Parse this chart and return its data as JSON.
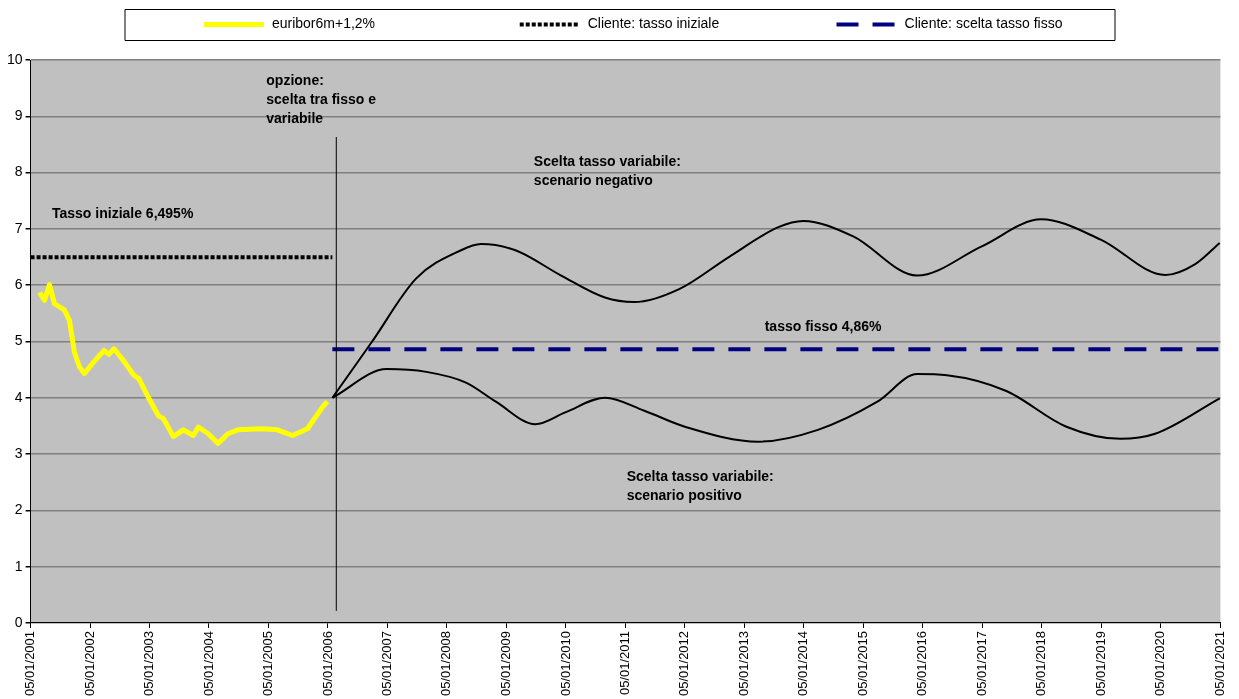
{
  "chart_data": {
    "type": "line",
    "marker": "none",
    "grid": "y",
    "legend": "top",
    "xlim": [
      "2001-01-05",
      "2021-01-05"
    ],
    "xticks": [
      {
        "value": "2001-01-05",
        "label": "05/01/2001"
      },
      {
        "value": "2002-01-05",
        "label": "05/01/2002"
      },
      {
        "value": "2003-01-05",
        "label": "05/01/2003"
      },
      {
        "value": "2004-01-05",
        "label": "05/01/2004"
      },
      {
        "value": "2005-01-05",
        "label": "05/01/2005"
      },
      {
        "value": "2006-01-05",
        "label": "05/01/2006"
      },
      {
        "value": "2007-01-05",
        "label": "05/01/2007"
      },
      {
        "value": "2008-01-05",
        "label": "05/01/2008"
      },
      {
        "value": "2009-01-05",
        "label": "05/01/2009"
      },
      {
        "value": "2010-01-05",
        "label": "05/01/2010"
      },
      {
        "value": "2011-01-05",
        "label": "05/01/2011"
      },
      {
        "value": "2012-01-05",
        "label": "05/01/2012"
      },
      {
        "value": "2013-01-05",
        "label": "05/01/2013"
      },
      {
        "value": "2014-01-05",
        "label": "05/01/2014"
      },
      {
        "value": "2015-01-05",
        "label": "05/01/2015"
      },
      {
        "value": "2016-01-05",
        "label": "05/01/2016"
      },
      {
        "value": "2017-01-05",
        "label": "05/01/2017"
      },
      {
        "value": "2018-01-05",
        "label": "05/01/2018"
      },
      {
        "value": "2019-01-05",
        "label": "05/01/2019"
      },
      {
        "value": "2020-01-05",
        "label": "05/01/2020"
      },
      {
        "value": "2021-01-05",
        "label": "05/01/2021"
      }
    ],
    "ylim": [
      0,
      10
    ],
    "yticks": [
      0,
      1,
      2,
      3,
      4,
      5,
      6,
      7,
      8,
      9,
      10
    ],
    "series": [
      {
        "name": "euribor6m+1,2%",
        "color": "#ffff00",
        "x": [
          "2001-03",
          "2001-04",
          "2001-05",
          "2001-06",
          "2001-08",
          "2001-09",
          "2001-10",
          "2001-11",
          "2001-12",
          "2002-02",
          "2002-04",
          "2002-05",
          "2002-06",
          "2002-08",
          "2002-10",
          "2002-11",
          "2003-01",
          "2003-03",
          "2003-04",
          "2003-06",
          "2003-08",
          "2003-10",
          "2003-11",
          "2004-01",
          "2004-03",
          "2004-05",
          "2004-07",
          "2004-12",
          "2005-03",
          "2005-06",
          "2005-09",
          "2005-12",
          "2006-01"
        ],
        "values": [
          5.87,
          5.73,
          6.01,
          5.67,
          5.56,
          5.37,
          4.81,
          4.55,
          4.43,
          4.65,
          4.84,
          4.77,
          4.87,
          4.65,
          4.4,
          4.34,
          3.99,
          3.68,
          3.63,
          3.31,
          3.43,
          3.33,
          3.48,
          3.36,
          3.19,
          3.36,
          3.43,
          3.45,
          3.43,
          3.33,
          3.45,
          3.83,
          3.93
        ]
      },
      {
        "name": "Cliente: tasso iniziale",
        "color": "#000000",
        "line_style": "dotted",
        "x": [
          "2001-01-05",
          "2006-02"
        ],
        "values": [
          6.495,
          6.495
        ]
      },
      {
        "name": "Cliente: scelta tasso fisso",
        "color": "#000080",
        "line_style": "dashed",
        "x": [
          "2006-02",
          "2021-01"
        ],
        "values": [
          4.86,
          4.86
        ]
      },
      {
        "color": "#000000",
        "x": [
          "2006-02",
          "2006-10",
          "2007-07",
          "2008-04",
          "2008-08",
          "2009-03",
          "2009-12",
          "2010-09",
          "2011-03",
          "2011-12",
          "2012-10",
          "2013-08",
          "2014-01",
          "2014-11",
          "2015-12",
          "2017-01",
          "2018-01",
          "2019-01",
          "2020-02",
          "2020-08",
          "2021-01"
        ],
        "values": [
          4.0,
          4.99,
          6.12,
          6.62,
          6.73,
          6.62,
          6.18,
          5.78,
          5.7,
          5.93,
          6.5,
          7.03,
          7.14,
          6.87,
          6.17,
          6.69,
          7.17,
          6.81,
          6.18,
          6.37,
          6.75
        ]
      },
      {
        "color": "#000000",
        "x": [
          "2006-02",
          "2007-01",
          "2007-09",
          "2008-05",
          "2008-11",
          "2009-07",
          "2010-01",
          "2010-09",
          "2011-05",
          "2012-01",
          "2013-04",
          "2014-04",
          "2015-04",
          "2015-12",
          "2016-06",
          "2017-06",
          "2018-06",
          "2019-05",
          "2019-12",
          "2021-01"
        ],
        "values": [
          4.0,
          4.51,
          4.46,
          4.27,
          3.93,
          3.53,
          3.74,
          4.0,
          3.77,
          3.49,
          3.22,
          3.43,
          3.93,
          4.42,
          4.4,
          4.12,
          3.49,
          3.27,
          3.36,
          3.99
        ]
      }
    ],
    "ref_lines": [
      {
        "axis": "x",
        "value": "2006-02-25",
        "label": "opzione:\nscelta tra fisso e\nvariabile",
        "color": "#000000"
      }
    ],
    "annotations": [
      "Tasso iniziale 6,495%",
      "Scelta tasso variabile:\nscenario negativo",
      "tasso fisso 4,86%",
      "Scelta tasso variabile:\nscenario positivo"
    ]
  }
}
